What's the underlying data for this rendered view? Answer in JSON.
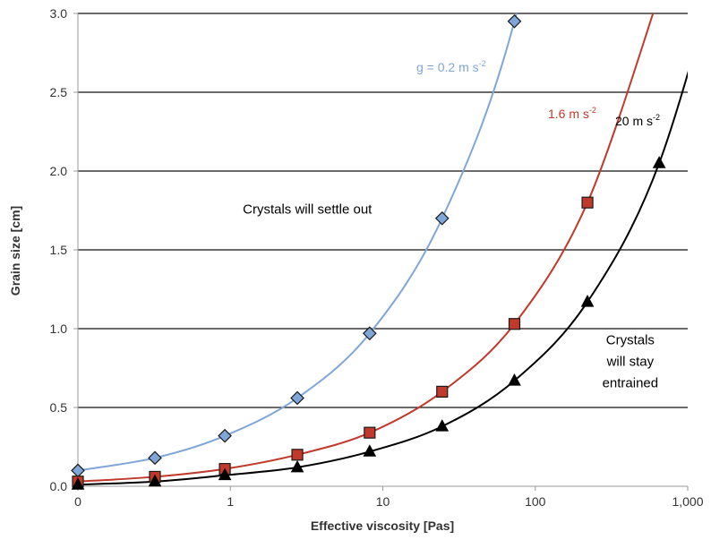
{
  "chart_data": {
    "type": "scatter",
    "xlabel": "Effective viscosity [Pas]",
    "ylabel": "Grain size [cm]",
    "x_scale": "log",
    "xlim": [
      0.1,
      1000
    ],
    "ylim": [
      0,
      3.0
    ],
    "x_ticks": [
      0.1,
      1,
      10,
      100,
      1000
    ],
    "x_tick_labels": [
      "0",
      "1",
      "10",
      "100",
      "1,000"
    ],
    "y_ticks": [
      0,
      0.5,
      1.0,
      1.5,
      2.0,
      2.5,
      3.0
    ],
    "y_tick_labels": [
      "0.0",
      "0.5",
      "1.0",
      "1.5",
      "2.0",
      "2.5",
      "3.0"
    ],
    "grid": "horizontal",
    "series": [
      {
        "name": "g = 0.2 m s",
        "unit_superscript": "-2",
        "color": "#7fa6d8",
        "marker": "diamond",
        "x": [
          0.1,
          0.32,
          0.92,
          2.75,
          8.2,
          24.5,
          73
        ],
        "y": [
          0.1,
          0.18,
          0.32,
          0.56,
          0.97,
          1.7,
          2.95
        ]
      },
      {
        "name": "1.6 m s",
        "unit_superscript": "-2",
        "color": "#c0392b",
        "marker": "square",
        "x": [
          0.1,
          0.32,
          0.92,
          2.75,
          8.2,
          24.5,
          73,
          220
        ],
        "y": [
          0.03,
          0.06,
          0.11,
          0.2,
          0.34,
          0.6,
          1.03,
          1.8
        ]
      },
      {
        "name": "20 m s",
        "unit_superscript": "-2",
        "color": "#000000",
        "marker": "triangle",
        "x": [
          0.1,
          0.32,
          0.92,
          2.75,
          8.2,
          24.5,
          73,
          220,
          650
        ],
        "y": [
          0.01,
          0.03,
          0.07,
          0.12,
          0.22,
          0.38,
          0.67,
          1.17,
          2.05
        ]
      }
    ],
    "annotations": [
      {
        "text": "Crystals will settle out",
        "x": 3.2,
        "y": 1.73
      },
      {
        "lines": [
          "Crystals",
          "will stay",
          "entrained"
        ],
        "x": 420,
        "y": 0.9
      }
    ]
  }
}
